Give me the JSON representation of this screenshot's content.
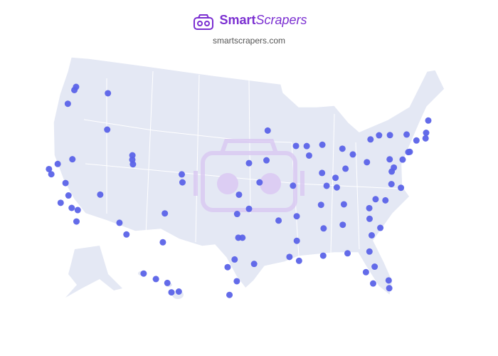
{
  "header": {
    "brand_a": "Smart",
    "brand_b": "Scrapers",
    "url": "smartscrapers.com"
  },
  "map": {
    "type": "dot-map",
    "color": "#5b63e8",
    "points": [
      {
        "lon": -122.3,
        "lat": 47.6
      },
      {
        "lon": -122.4,
        "lat": 47.2
      },
      {
        "lon": -117.4,
        "lat": 47.7
      },
      {
        "lon": -122.7,
        "lat": 45.5
      },
      {
        "lon": -116.2,
        "lat": 43.6
      },
      {
        "lon": -111.9,
        "lat": 40.7
      },
      {
        "lon": -112.0,
        "lat": 41.2
      },
      {
        "lon": -111.7,
        "lat": 40.2
      },
      {
        "lon": -122.4,
        "lat": 37.8
      },
      {
        "lon": -121.9,
        "lat": 37.3
      },
      {
        "lon": -121.5,
        "lat": 38.6
      },
      {
        "lon": -119.8,
        "lat": 36.7
      },
      {
        "lon": -118.2,
        "lat": 34.1
      },
      {
        "lon": -117.4,
        "lat": 34.0
      },
      {
        "lon": -117.2,
        "lat": 32.7
      },
      {
        "lon": -119.7,
        "lat": 34.4
      },
      {
        "lon": -119.0,
        "lat": 35.4
      },
      {
        "lon": -115.1,
        "lat": 36.2
      },
      {
        "lon": -119.8,
        "lat": 39.5
      },
      {
        "lon": -112.0,
        "lat": 33.4
      },
      {
        "lon": -110.9,
        "lat": 32.2
      },
      {
        "lon": -106.6,
        "lat": 35.1
      },
      {
        "lon": -106.4,
        "lat": 31.8
      },
      {
        "lon": -105.0,
        "lat": 39.7
      },
      {
        "lon": -104.8,
        "lat": 38.8
      },
      {
        "lon": -96.8,
        "lat": 32.8
      },
      {
        "lon": -97.3,
        "lat": 32.8
      },
      {
        "lon": -97.7,
        "lat": 30.3
      },
      {
        "lon": -98.5,
        "lat": 29.4
      },
      {
        "lon": -95.4,
        "lat": 29.8
      },
      {
        "lon": -97.4,
        "lat": 27.8
      },
      {
        "lon": -98.2,
        "lat": 26.2
      },
      {
        "lon": -97.5,
        "lat": 35.5
      },
      {
        "lon": -96.0,
        "lat": 36.1
      },
      {
        "lon": -97.3,
        "lat": 37.7
      },
      {
        "lon": -94.6,
        "lat": 39.1
      },
      {
        "lon": -96.0,
        "lat": 41.3
      },
      {
        "lon": -93.3,
        "lat": 45.0
      },
      {
        "lon": -90.2,
        "lat": 38.6
      },
      {
        "lon": -87.7,
        "lat": 41.9
      },
      {
        "lon": -87.9,
        "lat": 43.0
      },
      {
        "lon": -89.4,
        "lat": 43.1
      },
      {
        "lon": -86.2,
        "lat": 39.8
      },
      {
        "lon": -83.0,
        "lat": 42.3
      },
      {
        "lon": -85.7,
        "lat": 43.0
      },
      {
        "lon": -83.0,
        "lat": 40.0
      },
      {
        "lon": -81.7,
        "lat": 41.5
      },
      {
        "lon": -84.5,
        "lat": 39.1
      },
      {
        "lon": -85.8,
        "lat": 38.3
      },
      {
        "lon": -86.8,
        "lat": 36.2
      },
      {
        "lon": -90.0,
        "lat": 35.1
      },
      {
        "lon": -84.4,
        "lat": 33.7
      },
      {
        "lon": -86.8,
        "lat": 33.5
      },
      {
        "lon": -90.1,
        "lat": 30.0
      },
      {
        "lon": -91.2,
        "lat": 30.5
      },
      {
        "lon": -90.2,
        "lat": 32.3
      },
      {
        "lon": -92.3,
        "lat": 34.7
      },
      {
        "lon": -80.8,
        "lat": 35.2
      },
      {
        "lon": -78.6,
        "lat": 35.8
      },
      {
        "lon": -79.8,
        "lat": 36.1
      },
      {
        "lon": -81.0,
        "lat": 34.0
      },
      {
        "lon": -79.9,
        "lat": 32.8
      },
      {
        "lon": -81.1,
        "lat": 32.1
      },
      {
        "lon": -81.7,
        "lat": 30.3
      },
      {
        "lon": -81.4,
        "lat": 28.5
      },
      {
        "lon": -82.5,
        "lat": 28.0
      },
      {
        "lon": -80.2,
        "lat": 25.8
      },
      {
        "lon": -80.1,
        "lat": 26.7
      },
      {
        "lon": -81.9,
        "lat": 26.6
      },
      {
        "lon": -87.2,
        "lat": 30.4
      },
      {
        "lon": -84.3,
        "lat": 30.4
      },
      {
        "lon": -83.9,
        "lat": 36.0
      },
      {
        "lon": -77.4,
        "lat": 37.5
      },
      {
        "lon": -76.3,
        "lat": 36.9
      },
      {
        "lon": -77.0,
        "lat": 38.9
      },
      {
        "lon": -76.6,
        "lat": 39.3
      },
      {
        "lon": -75.2,
        "lat": 40.0
      },
      {
        "lon": -74.0,
        "lat": 40.7
      },
      {
        "lon": -74.2,
        "lat": 40.7
      },
      {
        "lon": -72.7,
        "lat": 41.8
      },
      {
        "lon": -71.1,
        "lat": 42.4
      },
      {
        "lon": -71.4,
        "lat": 41.8
      },
      {
        "lon": -80.0,
        "lat": 40.4
      },
      {
        "lon": -78.9,
        "lat": 42.9
      },
      {
        "lon": -77.6,
        "lat": 43.2
      },
      {
        "lon": -73.8,
        "lat": 42.7
      },
      {
        "lon": -76.1,
        "lat": 43.0
      },
      {
        "lon": -76.9,
        "lat": 40.3
      },
      {
        "lon": -70.3,
        "lat": 43.7
      },
      {
        "lon": -84.5,
        "lat": 38.0
      },
      {
        "lon": -93.6,
        "lat": 41.6
      }
    ],
    "hawaii_points": [
      {
        "lon": -157.9,
        "lat": 21.3
      },
      {
        "lon": -156.5,
        "lat": 20.8
      },
      {
        "lon": -155.1,
        "lat": 19.7
      },
      {
        "lon": -156.0,
        "lat": 19.6
      },
      {
        "lon": -159.4,
        "lat": 22.0
      }
    ]
  }
}
